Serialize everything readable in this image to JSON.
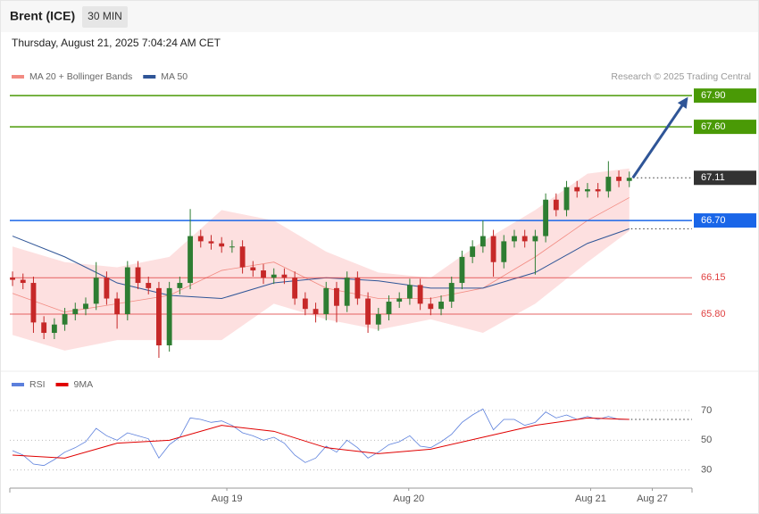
{
  "header": {
    "title": "Brent (ICE)",
    "interval": "30 MIN",
    "timestamp": "Thursday, August 21, 2025 7:04:24 AM CET"
  },
  "chart_data": [
    {
      "type": "candlestick",
      "credit": "Research © 2025 Trading Central",
      "up_color": "#2e7d32",
      "down_color": "#c62828",
      "ylim": [
        65.26,
        68.51
      ],
      "xlim": [
        -0.26,
        65
      ],
      "candles": {
        "open": [
          66.15,
          66.13,
          66.1,
          65.72,
          65.62,
          65.7,
          65.8,
          65.85,
          65.9,
          66.15,
          65.95,
          65.8,
          66.25,
          66.1,
          66.05,
          65.5,
          66.05,
          66.1,
          66.55,
          66.5,
          66.48,
          66.45,
          66.45,
          66.25,
          66.22,
          66.15,
          66.18,
          66.15,
          65.95,
          65.85,
          65.8,
          66.05,
          65.88,
          66.15,
          65.95,
          65.7,
          65.8,
          65.92,
          65.95,
          66.08,
          65.9,
          65.85,
          65.92,
          66.1,
          66.35,
          66.45,
          66.55,
          66.3,
          66.5,
          66.55,
          66.5,
          66.55,
          66.9,
          66.8,
          67.02,
          66.98,
          67.0,
          66.98,
          67.12,
          67.08
        ],
        "high": [
          66.21,
          66.19,
          66.16,
          65.78,
          65.76,
          65.86,
          65.91,
          65.96,
          66.3,
          66.21,
          66.01,
          66.31,
          66.31,
          66.16,
          66.11,
          66.11,
          66.16,
          66.81,
          66.61,
          66.56,
          66.54,
          66.51,
          66.51,
          66.31,
          66.28,
          66.24,
          66.24,
          66.21,
          66.01,
          65.91,
          66.11,
          66.11,
          66.21,
          66.21,
          66.01,
          65.86,
          65.98,
          66.01,
          66.14,
          66.14,
          65.96,
          65.98,
          66.16,
          66.41,
          66.51,
          66.7,
          66.61,
          66.56,
          66.61,
          66.61,
          66.61,
          66.96,
          66.96,
          67.08,
          67.08,
          67.06,
          67.06,
          67.27,
          67.18,
          67.17
        ],
        "low": [
          66.07,
          66.04,
          65.62,
          65.56,
          65.56,
          65.64,
          65.74,
          65.79,
          65.84,
          65.89,
          65.66,
          65.74,
          66.04,
          65.99,
          65.38,
          65.44,
          65.99,
          66.04,
          66.44,
          66.42,
          66.39,
          66.39,
          66.19,
          66.16,
          66.09,
          66.09,
          66.09,
          65.89,
          65.79,
          65.72,
          65.74,
          65.72,
          65.82,
          65.89,
          65.62,
          65.64,
          65.74,
          65.86,
          65.89,
          65.84,
          65.79,
          65.79,
          65.86,
          66.04,
          66.29,
          66.39,
          66.16,
          66.24,
          66.44,
          66.44,
          66.18,
          66.49,
          66.74,
          66.74,
          66.92,
          66.92,
          66.92,
          66.92,
          67.02,
          67.02
        ],
        "close": [
          66.13,
          66.1,
          65.72,
          65.62,
          65.7,
          65.8,
          65.85,
          65.9,
          66.15,
          65.95,
          65.8,
          66.25,
          66.1,
          66.05,
          65.5,
          66.05,
          66.1,
          66.55,
          66.5,
          66.48,
          66.45,
          66.45,
          66.25,
          66.22,
          66.15,
          66.18,
          66.15,
          65.95,
          65.85,
          65.8,
          66.05,
          65.88,
          66.15,
          65.95,
          65.7,
          65.8,
          65.92,
          65.95,
          66.08,
          65.9,
          65.85,
          65.92,
          66.1,
          66.35,
          66.45,
          66.55,
          66.3,
          66.5,
          66.55,
          66.5,
          66.55,
          66.9,
          66.8,
          67.02,
          66.98,
          67.0,
          66.98,
          67.12,
          67.08,
          67.11
        ]
      },
      "series": [
        {
          "name": "MA 20 + Bollinger Bands",
          "color": "#f28b82",
          "band_color": "#fde0e0",
          "x": [
            0,
            5,
            10,
            15,
            20,
            25,
            30,
            35,
            40,
            45,
            50,
            55,
            59
          ],
          "values": [
            66.0,
            65.82,
            65.9,
            65.98,
            66.22,
            66.3,
            66.05,
            65.95,
            65.95,
            66.05,
            66.35,
            66.7,
            66.92
          ],
          "upper": [
            66.45,
            66.3,
            66.25,
            66.35,
            66.8,
            66.7,
            66.4,
            66.2,
            66.15,
            66.5,
            66.8,
            67.15,
            67.2
          ],
          "lower": [
            65.6,
            65.45,
            65.55,
            65.55,
            65.55,
            65.9,
            65.75,
            65.65,
            65.75,
            65.62,
            65.9,
            66.3,
            66.6
          ]
        },
        {
          "name": "MA 50",
          "color": "#2f5597",
          "x": [
            0,
            5,
            10,
            15,
            20,
            25,
            30,
            35,
            40,
            45,
            50,
            55,
            59
          ],
          "values": [
            66.55,
            66.35,
            66.1,
            65.98,
            65.95,
            66.1,
            66.15,
            66.12,
            66.05,
            66.05,
            66.2,
            66.48,
            66.62
          ]
        }
      ],
      "levels": [
        {
          "value": 67.9,
          "label": "67.90",
          "color": "#4a9a06",
          "style": "box"
        },
        {
          "value": 67.6,
          "label": "67.60",
          "color": "#4a9a06",
          "style": "box"
        },
        {
          "value": 67.11,
          "color": "#333333",
          "style": "box",
          "dotted": true
        },
        {
          "value": 66.7,
          "label": "66.70",
          "color": "#1a66e8",
          "style": "box"
        },
        {
          "value": 66.15,
          "color": "#e04040",
          "style": "text"
        },
        {
          "value": 65.8,
          "label": "65.80",
          "color": "#e04040",
          "style": "text"
        }
      ],
      "projection": {
        "x": 64.5,
        "value": 67.87,
        "color": "#2f5597"
      }
    },
    {
      "type": "line",
      "ylim": [
        19,
        94
      ],
      "yticks": [
        70,
        50,
        30
      ],
      "xlim": [
        -0.26,
        65
      ],
      "xticks": [
        {
          "value": 20.5,
          "label": "Aug 19"
        },
        {
          "value": 37.9,
          "label": "Aug 20"
        },
        {
          "value": 55.3,
          "label": "Aug 21"
        },
        {
          "value": 61.2,
          "label": "Aug 27"
        }
      ],
      "series": [
        {
          "name": "RSI",
          "color": "#5b7fdc",
          "values": [
            43,
            40,
            34,
            33,
            37,
            42,
            45,
            49,
            58,
            53,
            50,
            55,
            53,
            51,
            38,
            47,
            52,
            65,
            64,
            62,
            63,
            60,
            55,
            53,
            50,
            52,
            48,
            40,
            35,
            38,
            46,
            42,
            50,
            45,
            38,
            42,
            47,
            49,
            53,
            46,
            45,
            49,
            54,
            62,
            67,
            71,
            57,
            64,
            64,
            60,
            62,
            69,
            65,
            67,
            64,
            66,
            64,
            66,
            64,
            64
          ]
        },
        {
          "name": "9MA",
          "color": "#e00000",
          "x": [
            0,
            5,
            10,
            15,
            20,
            25,
            30,
            35,
            40,
            45,
            50,
            55,
            59
          ],
          "values": [
            40,
            38,
            48,
            50,
            60,
            56,
            45,
            41,
            44,
            52,
            60,
            65,
            64
          ]
        }
      ]
    }
  ]
}
